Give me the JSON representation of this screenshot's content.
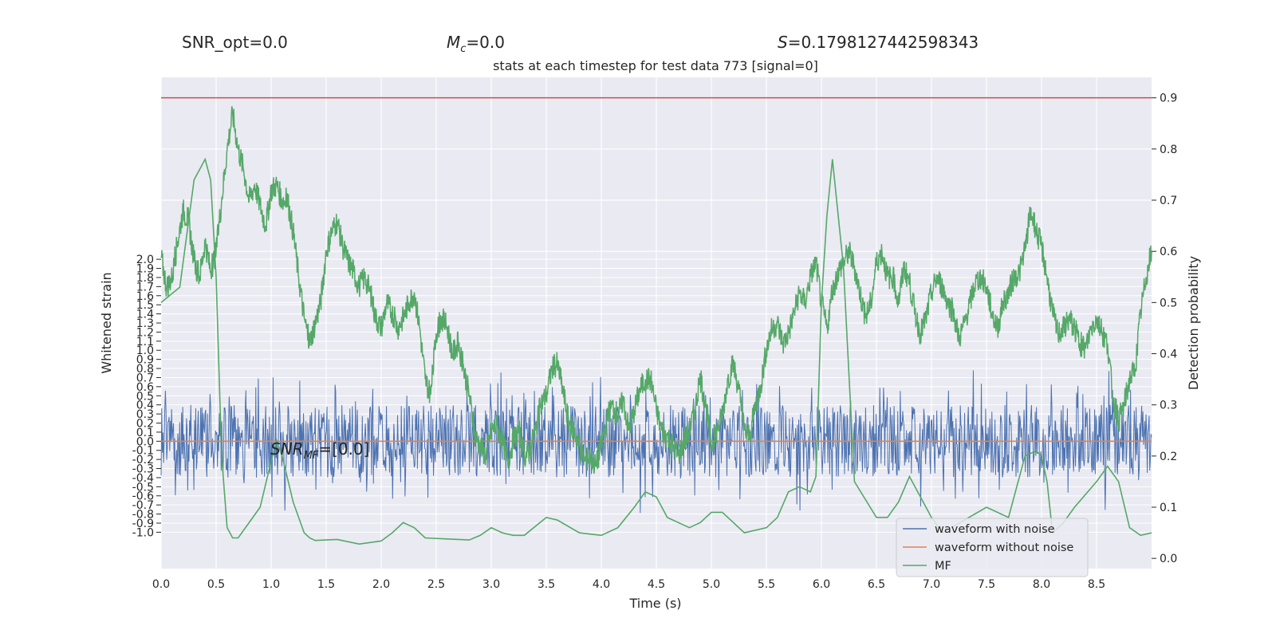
{
  "header": {
    "snr_opt": "SNR_opt=0.0",
    "mc_symbol": "M",
    "mc_subscript": "c",
    "mc_value": "=0.0",
    "s_symbol": "S",
    "s_value": "=0.1798127442598343",
    "subtitle": "stats at each timestep for test data 773 [signal=0]"
  },
  "annotation": {
    "snr_mf_main": "SNR",
    "snr_mf_sub": "MF",
    "snr_mf_value": "=[0.0]"
  },
  "axes": {
    "xlabel": "Time (s)",
    "ylabel_left": "Whitened strain",
    "ylabel_right": "Detection probability"
  },
  "legend": {
    "entries": [
      {
        "label": "waveform with noise",
        "color": "#4c72b0"
      },
      {
        "label": "waveform without noise",
        "color": "#dd8452"
      },
      {
        "label": "MF",
        "color": "#55a868"
      }
    ]
  },
  "colors": {
    "plot_bg": "#eaeaf2",
    "grid": "#ffffff",
    "threshold": "#c44e52",
    "noise": "#4c72b0",
    "clean": "#dd8452",
    "mf": "#55a868",
    "prob": "#55a868"
  },
  "chart_data": {
    "type": "line",
    "x_ticks": [
      "0.0",
      "0.5",
      "1.0",
      "1.5",
      "2.0",
      "2.5",
      "3.0",
      "3.5",
      "4.0",
      "4.5",
      "5.0",
      "5.5",
      "6.0",
      "6.5",
      "7.0",
      "7.5",
      "8.0",
      "8.5"
    ],
    "xlim": [
      0.0,
      9.0
    ],
    "left_ylim": [
      -1.4,
      4.0
    ],
    "left_ticks": [
      "-1.0",
      "-0.9",
      "-0.8",
      "-0.7",
      "-0.6",
      "-0.5",
      "-0.4",
      "-0.3",
      "-0.2",
      "-0.1",
      "0.0",
      "0.1",
      "0.2",
      "0.3",
      "0.4",
      "0.5",
      "0.6",
      "0.7",
      "0.8",
      "0.9",
      "1.0",
      "1.1",
      "1.2",
      "1.3",
      "1.4",
      "1.5",
      "1.6",
      "1.7",
      "1.8",
      "1.9",
      "2.0"
    ],
    "right_ylim": [
      -0.02,
      0.94
    ],
    "right_ticks": [
      "0.0",
      "0.1",
      "0.2",
      "0.3",
      "0.4",
      "0.5",
      "0.6",
      "0.7",
      "0.8",
      "0.9"
    ],
    "threshold": 0.9,
    "waveform_without_noise": 0.0,
    "waveform_with_noise_range": [
      -0.55,
      0.55
    ],
    "series": [
      {
        "name": "MF",
        "axis": "right",
        "x": [
          0.0,
          0.17,
          0.3,
          0.4,
          0.45,
          0.5,
          0.55,
          0.6,
          0.65,
          0.7,
          0.8,
          0.9,
          1.0,
          1.05,
          1.1,
          1.2,
          1.3,
          1.35,
          1.4,
          1.6,
          1.8,
          2.0,
          2.1,
          2.2,
          2.3,
          2.4,
          2.6,
          2.8,
          2.9,
          3.0,
          3.1,
          3.2,
          3.3,
          3.5,
          3.6,
          3.8,
          4.0,
          4.15,
          4.3,
          4.4,
          4.5,
          4.6,
          4.8,
          4.9,
          5.0,
          5.1,
          5.3,
          5.5,
          5.6,
          5.7,
          5.8,
          5.9,
          5.95,
          6.0,
          6.05,
          6.1,
          6.2,
          6.3,
          6.5,
          6.6,
          6.7,
          6.8,
          6.9,
          7.0,
          7.1,
          7.5,
          7.7,
          7.85,
          7.95,
          8.0,
          8.05,
          8.1,
          8.2,
          8.3,
          8.5,
          8.6,
          8.7,
          8.8,
          8.9,
          9.0
        ],
        "values": [
          0.5,
          0.53,
          0.74,
          0.78,
          0.74,
          0.55,
          0.2,
          0.06,
          0.04,
          0.04,
          0.07,
          0.1,
          0.19,
          0.23,
          0.2,
          0.11,
          0.05,
          0.04,
          0.035,
          0.037,
          0.028,
          0.034,
          0.05,
          0.07,
          0.06,
          0.04,
          0.038,
          0.036,
          0.045,
          0.06,
          0.05,
          0.045,
          0.045,
          0.08,
          0.075,
          0.05,
          0.045,
          0.06,
          0.1,
          0.13,
          0.12,
          0.08,
          0.06,
          0.07,
          0.09,
          0.09,
          0.05,
          0.06,
          0.08,
          0.13,
          0.14,
          0.13,
          0.16,
          0.5,
          0.67,
          0.78,
          0.57,
          0.15,
          0.08,
          0.08,
          0.11,
          0.16,
          0.12,
          0.08,
          0.05,
          0.1,
          0.08,
          0.2,
          0.21,
          0.2,
          0.15,
          0.05,
          0.07,
          0.1,
          0.15,
          0.18,
          0.15,
          0.06,
          0.045,
          0.05
        ]
      },
      {
        "name": "",
        "axis": "right",
        "x": [
          0.0,
          0.05,
          0.1,
          0.15,
          0.2,
          0.25,
          0.3,
          0.35,
          0.4,
          0.45,
          0.5,
          0.55,
          0.6,
          0.65,
          0.7,
          0.75,
          0.8,
          0.85,
          0.9,
          0.95,
          1.0,
          1.05,
          1.1,
          1.15,
          1.2,
          1.25,
          1.3,
          1.35,
          1.4,
          1.45,
          1.5,
          1.55,
          1.6,
          1.65,
          1.7,
          1.75,
          1.8,
          1.85,
          1.9,
          1.95,
          2.0,
          2.05,
          2.1,
          2.15,
          2.2,
          2.25,
          2.3,
          2.35,
          2.4,
          2.45,
          2.5,
          2.55,
          2.6,
          2.65,
          2.7,
          2.75,
          2.8,
          2.85,
          2.9,
          2.95,
          3.0,
          3.05,
          3.1,
          3.15,
          3.2,
          3.25,
          3.3,
          3.35,
          3.4,
          3.45,
          3.5,
          3.55,
          3.6,
          3.65,
          3.7,
          3.75,
          3.8,
          3.85,
          3.9,
          3.95,
          4.0,
          4.05,
          4.1,
          4.15,
          4.2,
          4.25,
          4.3,
          4.35,
          4.4,
          4.45,
          4.5,
          4.55,
          4.6,
          4.65,
          4.7,
          4.75,
          4.8,
          4.85,
          4.9,
          4.95,
          5.0,
          5.05,
          5.1,
          5.15,
          5.2,
          5.25,
          5.3,
          5.35,
          5.4,
          5.45,
          5.5,
          5.55,
          5.6,
          5.65,
          5.7,
          5.75,
          5.8,
          5.85,
          5.9,
          5.95,
          6.0,
          6.05,
          6.1,
          6.15,
          6.2,
          6.25,
          6.3,
          6.35,
          6.4,
          6.45,
          6.5,
          6.55,
          6.6,
          6.65,
          6.7,
          6.75,
          6.8,
          6.85,
          6.9,
          6.95,
          7.0,
          7.05,
          7.1,
          7.15,
          7.2,
          7.25,
          7.3,
          7.35,
          7.4,
          7.45,
          7.5,
          7.55,
          7.6,
          7.65,
          7.7,
          7.75,
          7.8,
          7.85,
          7.9,
          7.95,
          8.0,
          8.05,
          8.1,
          8.15,
          8.2,
          8.25,
          8.3,
          8.35,
          8.4,
          8.45,
          8.5,
          8.55,
          8.6,
          8.65,
          8.7,
          8.75,
          8.8,
          8.85,
          8.9,
          8.95,
          9.0
        ],
        "values": [
          0.59,
          0.53,
          0.55,
          0.62,
          0.68,
          0.66,
          0.58,
          0.55,
          0.62,
          0.56,
          0.6,
          0.7,
          0.8,
          0.87,
          0.8,
          0.76,
          0.7,
          0.73,
          0.69,
          0.65,
          0.72,
          0.73,
          0.7,
          0.7,
          0.64,
          0.55,
          0.47,
          0.42,
          0.46,
          0.5,
          0.6,
          0.64,
          0.66,
          0.61,
          0.58,
          0.56,
          0.53,
          0.55,
          0.52,
          0.47,
          0.45,
          0.5,
          0.48,
          0.45,
          0.47,
          0.5,
          0.52,
          0.45,
          0.35,
          0.32,
          0.44,
          0.47,
          0.45,
          0.4,
          0.42,
          0.37,
          0.32,
          0.24,
          0.22,
          0.2,
          0.25,
          0.26,
          0.23,
          0.19,
          0.23,
          0.25,
          0.2,
          0.21,
          0.25,
          0.3,
          0.32,
          0.37,
          0.38,
          0.33,
          0.27,
          0.25,
          0.22,
          0.19,
          0.2,
          0.18,
          0.22,
          0.27,
          0.3,
          0.28,
          0.31,
          0.25,
          0.29,
          0.33,
          0.35,
          0.35,
          0.29,
          0.25,
          0.24,
          0.22,
          0.2,
          0.23,
          0.25,
          0.29,
          0.35,
          0.3,
          0.22,
          0.25,
          0.28,
          0.35,
          0.38,
          0.33,
          0.25,
          0.24,
          0.3,
          0.34,
          0.41,
          0.45,
          0.46,
          0.42,
          0.44,
          0.48,
          0.52,
          0.5,
          0.55,
          0.58,
          0.5,
          0.45,
          0.52,
          0.56,
          0.58,
          0.6,
          0.57,
          0.52,
          0.47,
          0.5,
          0.58,
          0.6,
          0.55,
          0.55,
          0.5,
          0.57,
          0.54,
          0.48,
          0.44,
          0.47,
          0.52,
          0.55,
          0.53,
          0.5,
          0.48,
          0.43,
          0.46,
          0.5,
          0.54,
          0.55,
          0.53,
          0.48,
          0.45,
          0.5,
          0.52,
          0.55,
          0.56,
          0.6,
          0.68,
          0.64,
          0.61,
          0.55,
          0.48,
          0.44,
          0.45,
          0.47,
          0.45,
          0.42,
          0.41,
          0.45,
          0.47,
          0.44,
          0.42,
          0.31,
          0.27,
          0.3,
          0.35,
          0.37,
          0.48,
          0.55,
          0.6
        ]
      }
    ]
  }
}
